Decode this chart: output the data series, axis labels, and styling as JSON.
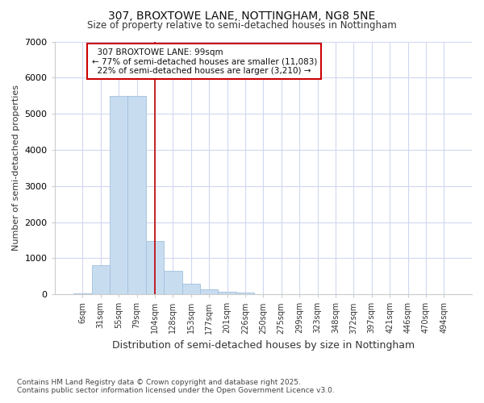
{
  "title1": "307, BROXTOWE LANE, NOTTINGHAM, NG8 5NE",
  "title2": "Size of property relative to semi-detached houses in Nottingham",
  "xlabel": "Distribution of semi-detached houses by size in Nottingham",
  "ylabel": "Number of semi-detached properties",
  "categories": [
    "6sqm",
    "31sqm",
    "55sqm",
    "79sqm",
    "104sqm",
    "128sqm",
    "153sqm",
    "177sqm",
    "201sqm",
    "226sqm",
    "250sqm",
    "275sqm",
    "299sqm",
    "323sqm",
    "348sqm",
    "372sqm",
    "397sqm",
    "421sqm",
    "446sqm",
    "470sqm",
    "494sqm"
  ],
  "values": [
    30,
    800,
    5500,
    5500,
    1480,
    660,
    290,
    130,
    75,
    50,
    0,
    0,
    0,
    0,
    0,
    0,
    0,
    0,
    0,
    0,
    0
  ],
  "bar_color": "#c8dcf0",
  "bar_edge_color": "#a0c0dc",
  "property_label": "307 BROXTOWE LANE: 99sqm",
  "pct_smaller": 77,
  "count_smaller": 11083,
  "pct_larger": 22,
  "count_larger": 3210,
  "vline_color": "#bb0000",
  "annotation_box_color": "#cc0000",
  "background_color": "#ffffff",
  "grid_color": "#d0d8f0",
  "ylim": [
    0,
    7000
  ],
  "footnote1": "Contains HM Land Registry data © Crown copyright and database right 2025.",
  "footnote2": "Contains public sector information licensed under the Open Government Licence v3.0."
}
